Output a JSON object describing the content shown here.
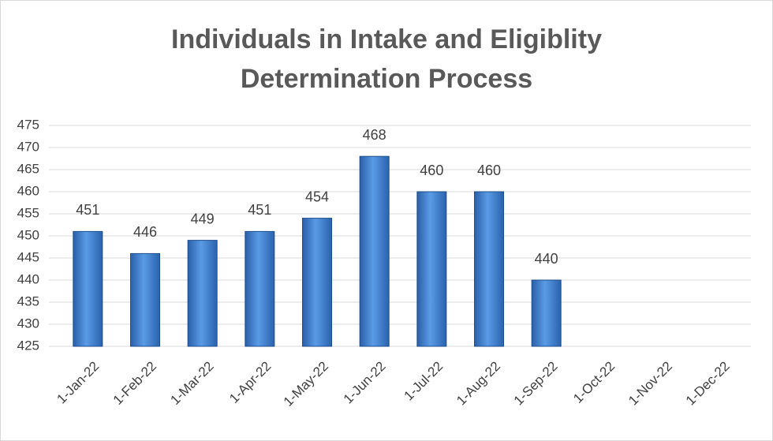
{
  "chart_data": {
    "type": "bar",
    "title": [
      "Individuals in Intake and Eligiblity",
      "Determination Process"
    ],
    "categories": [
      "1-Jan-22",
      "1-Feb-22",
      "1-Mar-22",
      "1-Apr-22",
      "1-May-22",
      "1-Jun-22",
      "1-Jul-22",
      "1-Aug-22",
      "1-Sep-22",
      "1-Oct-22",
      "1-Nov-22",
      "1-Dec-22"
    ],
    "values": [
      451,
      446,
      449,
      451,
      454,
      468,
      460,
      460,
      440,
      null,
      null,
      null
    ],
    "color": "#3a78c9",
    "ylim": [
      425,
      475
    ],
    "yticks": [
      425,
      430,
      435,
      440,
      445,
      450,
      455,
      460,
      465,
      470,
      475
    ],
    "grid": true
  }
}
